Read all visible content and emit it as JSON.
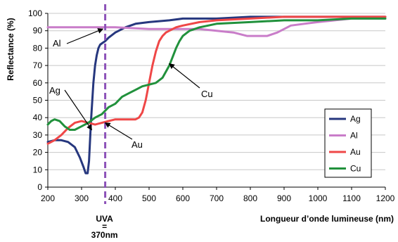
{
  "chart_data": {
    "type": "line",
    "xlabel": "Longueur d’onde lumineuse (nm)",
    "ylabel": "Reflectance (%)",
    "xlim": [
      200,
      1200
    ],
    "ylim": [
      0,
      100
    ],
    "xticks": [
      200,
      300,
      400,
      500,
      600,
      700,
      800,
      900,
      1000,
      1100,
      1200
    ],
    "yticks": [
      0,
      10,
      20,
      30,
      40,
      50,
      60,
      70,
      80,
      90,
      100
    ],
    "grid": "horizontal",
    "legend": "bottom-right",
    "series": [
      {
        "name": "Ag",
        "color": "#26377e",
        "points": [
          [
            200,
            26
          ],
          [
            220,
            27
          ],
          [
            240,
            27
          ],
          [
            260,
            26
          ],
          [
            280,
            23
          ],
          [
            295,
            17
          ],
          [
            305,
            12
          ],
          [
            312,
            8
          ],
          [
            318,
            8
          ],
          [
            322,
            15
          ],
          [
            328,
            38
          ],
          [
            335,
            60
          ],
          [
            340,
            70
          ],
          [
            345,
            76
          ],
          [
            350,
            80
          ],
          [
            355,
            82
          ],
          [
            362,
            83
          ],
          [
            370,
            84
          ],
          [
            380,
            86
          ],
          [
            400,
            89
          ],
          [
            430,
            92
          ],
          [
            460,
            94
          ],
          [
            500,
            95
          ],
          [
            560,
            96
          ],
          [
            600,
            97
          ],
          [
            700,
            97
          ],
          [
            800,
            98
          ],
          [
            900,
            98
          ],
          [
            1000,
            98
          ],
          [
            1100,
            98
          ],
          [
            1200,
            98
          ]
        ]
      },
      {
        "name": "Al",
        "color": "#c97dc9",
        "points": [
          [
            200,
            92
          ],
          [
            300,
            92
          ],
          [
            400,
            92
          ],
          [
            500,
            91
          ],
          [
            600,
            91
          ],
          [
            650,
            91
          ],
          [
            700,
            90
          ],
          [
            750,
            89
          ],
          [
            790,
            87
          ],
          [
            820,
            87
          ],
          [
            850,
            87
          ],
          [
            880,
            89
          ],
          [
            920,
            93
          ],
          [
            960,
            94
          ],
          [
            1000,
            95
          ],
          [
            1050,
            96
          ],
          [
            1100,
            97
          ],
          [
            1200,
            97
          ]
        ]
      },
      {
        "name": "Au",
        "color": "#ef4747",
        "points": [
          [
            200,
            25
          ],
          [
            220,
            27
          ],
          [
            240,
            30
          ],
          [
            260,
            34
          ],
          [
            280,
            37
          ],
          [
            300,
            38
          ],
          [
            320,
            37
          ],
          [
            340,
            36
          ],
          [
            360,
            37
          ],
          [
            380,
            38
          ],
          [
            400,
            39
          ],
          [
            420,
            39
          ],
          [
            440,
            39
          ],
          [
            460,
            39
          ],
          [
            470,
            40
          ],
          [
            480,
            43
          ],
          [
            490,
            50
          ],
          [
            500,
            60
          ],
          [
            510,
            70
          ],
          [
            520,
            78
          ],
          [
            530,
            84
          ],
          [
            540,
            87
          ],
          [
            550,
            89
          ],
          [
            560,
            90
          ],
          [
            580,
            92
          ],
          [
            600,
            93
          ],
          [
            650,
            95
          ],
          [
            700,
            96
          ],
          [
            800,
            97
          ],
          [
            900,
            98
          ],
          [
            1000,
            98
          ],
          [
            1100,
            98
          ],
          [
            1200,
            98
          ]
        ]
      },
      {
        "name": "Cu",
        "color": "#21913c",
        "points": [
          [
            200,
            36
          ],
          [
            210,
            38
          ],
          [
            220,
            39
          ],
          [
            235,
            38
          ],
          [
            250,
            35
          ],
          [
            265,
            33
          ],
          [
            280,
            33
          ],
          [
            300,
            35
          ],
          [
            320,
            37
          ],
          [
            340,
            40
          ],
          [
            360,
            42
          ],
          [
            380,
            46
          ],
          [
            400,
            48
          ],
          [
            420,
            52
          ],
          [
            440,
            54
          ],
          [
            460,
            56
          ],
          [
            480,
            58
          ],
          [
            500,
            59
          ],
          [
            520,
            60
          ],
          [
            540,
            63
          ],
          [
            560,
            70
          ],
          [
            570,
            75
          ],
          [
            580,
            80
          ],
          [
            590,
            84
          ],
          [
            600,
            87
          ],
          [
            620,
            90
          ],
          [
            650,
            92
          ],
          [
            700,
            94
          ],
          [
            800,
            95
          ],
          [
            900,
            96
          ],
          [
            1000,
            96
          ],
          [
            1100,
            97
          ],
          [
            1200,
            97
          ]
        ]
      }
    ],
    "marker_line": {
      "x": 370,
      "color": "#8c52b8",
      "label_lines": [
        "UVA",
        "=",
        "370nm"
      ]
    },
    "annotations": [
      {
        "text": "Al",
        "target": [
          363,
          91
        ]
      },
      {
        "text": "Ag",
        "target": [
          330,
          33
        ]
      },
      {
        "text": "Cu",
        "target": [
          560,
          71
        ]
      },
      {
        "text": "Au",
        "target": [
          370,
          37
        ]
      }
    ]
  }
}
